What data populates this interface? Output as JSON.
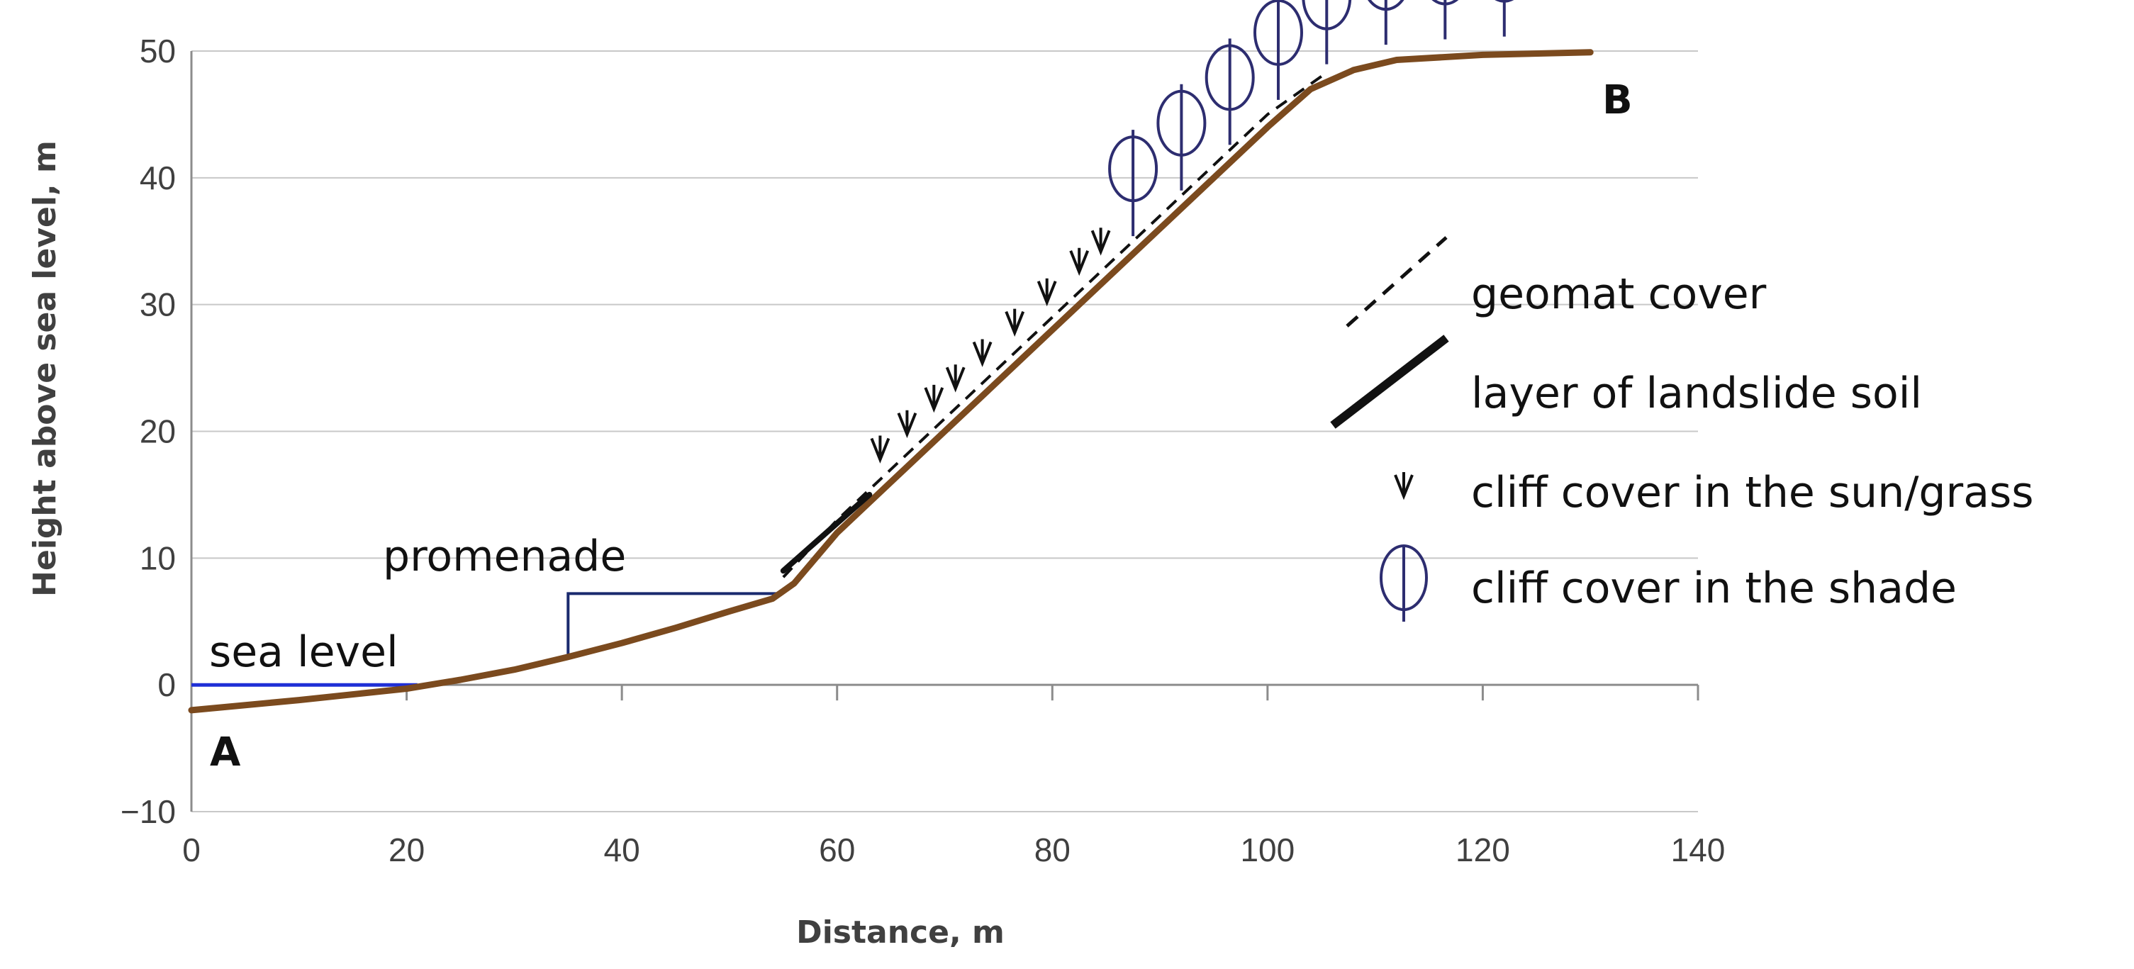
{
  "chart_data": {
    "type": "line",
    "title": "",
    "xlabel": "Distance, m",
    "ylabel": "Height above sea level, m",
    "xlim": [
      0,
      140
    ],
    "ylim": [
      -10,
      50
    ],
    "xticks": [
      0,
      20,
      40,
      60,
      80,
      100,
      120,
      140
    ],
    "yticks": [
      -10,
      0,
      10,
      20,
      30,
      40,
      50
    ],
    "grid": "horizontal",
    "series": [
      {
        "name": "terrain profile",
        "color": "#7b4a1e",
        "x": [
          0,
          10,
          20,
          25,
          30,
          35,
          40,
          45,
          50,
          54,
          56,
          60,
          70,
          80,
          90,
          100,
          104,
          108,
          112,
          120,
          130
        ],
        "y": [
          -2,
          -1.2,
          -0.3,
          0.4,
          1.2,
          2.2,
          3.3,
          4.5,
          5.8,
          6.8,
          8,
          12,
          20,
          28,
          36,
          44,
          47,
          48.5,
          49.3,
          49.7,
          49.9
        ]
      },
      {
        "name": "geomat cover",
        "style": "dashed",
        "x": [
          55,
          60,
          70,
          80,
          90,
          100,
          105
        ],
        "y": [
          8.5,
          13,
          21,
          29,
          37,
          45,
          48
        ]
      },
      {
        "name": "layer of landslide soil",
        "style": "solid-thick",
        "x": [
          55,
          63
        ],
        "y": [
          9,
          15
        ]
      },
      {
        "name": "sea level",
        "color": "#1f2fd6",
        "x": [
          0,
          21
        ],
        "y": [
          0,
          0
        ]
      },
      {
        "name": "promenade",
        "color": "#1a2a6e",
        "x": [
          35,
          35,
          55
        ],
        "y": [
          2.2,
          7.2,
          7.2
        ]
      }
    ],
    "grass_x": [
      64,
      66.5,
      69,
      71,
      73.5,
      76.5,
      79.5,
      82.5,
      84.5
    ],
    "shade_x": [
      87.5,
      92,
      96.5,
      101,
      105.5,
      111,
      116.5,
      122
    ],
    "annotations": {
      "sea_level": "sea level",
      "promenade": "promenade",
      "point_a": "A",
      "point_b": "B"
    },
    "legend": {
      "position": "right",
      "entries": [
        {
          "label": "geomat cover",
          "marker": "dashed-line"
        },
        {
          "label": "layer of landslide soil",
          "marker": "thick-line"
        },
        {
          "label": "cliff cover in the sun/grass",
          "marker": "grass"
        },
        {
          "label": "cliff cover in the shade",
          "marker": "tree"
        }
      ]
    }
  }
}
